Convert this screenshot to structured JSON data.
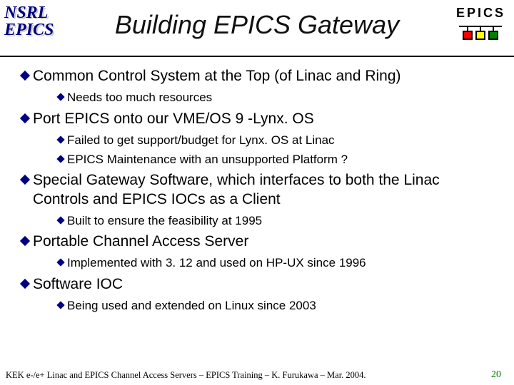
{
  "colors": {
    "bullet_l1": "#000080",
    "bullet_l2": "#000080",
    "logo_text": "#000080",
    "pagenum": "#008000",
    "box1": "#ff0000",
    "box2": "#ffff00",
    "box3": "#008000"
  },
  "logo": {
    "line1": "NSRL",
    "line2": "EPICS"
  },
  "epics_label": "EPICS",
  "title": "Building EPICS Gateway",
  "bullets": [
    {
      "text": "Common Control System at the Top (of Linac and Ring)",
      "children": [
        {
          "text": "Needs too much resources"
        }
      ]
    },
    {
      "text": "Port EPICS onto our VME/OS 9 -Lynx. OS",
      "children": [
        {
          "text": "Failed to get support/budget for Lynx. OS at Linac"
        },
        {
          "text": "EPICS Maintenance with an unsupported Platform ?"
        }
      ]
    },
    {
      "text": "Special Gateway Software, which interfaces to both the Linac Controls and EPICS IOCs as a Client",
      "children": [
        {
          "text": "Built to ensure the feasibility at 1995"
        }
      ]
    },
    {
      "text": "Portable Channel Access Server",
      "children": [
        {
          "text": "Implemented with 3. 12 and used on HP-UX since 1996"
        }
      ]
    },
    {
      "text": "Software IOC",
      "children": [
        {
          "text": "Being used and extended on Linux since 2003"
        }
      ]
    }
  ],
  "footer": "KEK e-/e+ Linac and EPICS Channel Access Servers – EPICS Training – K. Furukawa – Mar. 2004.",
  "page_number": "20"
}
